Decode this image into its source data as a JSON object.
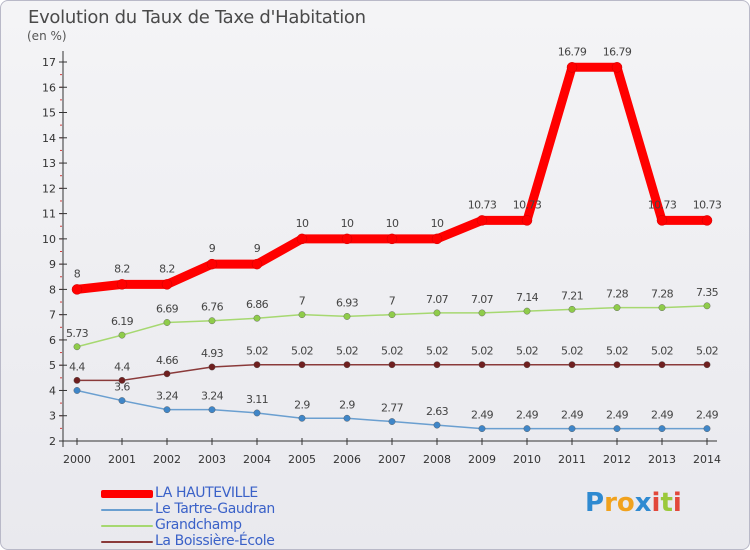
{
  "header": {
    "title": "Evolution du Taux de Taxe d'Habitation",
    "unit": "(en %)"
  },
  "brand": {
    "text": "Proxiti",
    "colors": [
      "#2f8ad1",
      "#f1a21d",
      "#9bc93b",
      "#e2473a"
    ]
  },
  "chart_data": {
    "type": "line",
    "title": "Evolution du Taux de Taxe d'Habitation",
    "ylabel": "(en %)",
    "xlabel": "",
    "x": [
      "2000",
      "2001",
      "2002",
      "2003",
      "2004",
      "2005",
      "2006",
      "2007",
      "2008",
      "2009",
      "2010",
      "2011",
      "2012",
      "2013",
      "2014"
    ],
    "ylim": [
      2,
      17
    ],
    "yticks": [
      2,
      3,
      4,
      5,
      6,
      7,
      8,
      9,
      10,
      11,
      12,
      13,
      14,
      15,
      16,
      17
    ],
    "grid": false,
    "legend": "bottom-left",
    "series": [
      {
        "name": "LA HAUTEVILLE",
        "color": "#ff0000",
        "marker": "#ff0000",
        "values": [
          8,
          8.2,
          8.2,
          9,
          9,
          10,
          10,
          10,
          10,
          10.73,
          10.73,
          16.79,
          16.79,
          10.73,
          10.73
        ],
        "labels": [
          "8",
          "8.2",
          "8.2",
          "9",
          "9",
          "10",
          "10",
          "10",
          "10",
          "10.73",
          "10.73",
          "16.79",
          "16.79",
          "10.73",
          "10.73"
        ]
      },
      {
        "name": "Le Tartre-Gaudran",
        "color": "#6a9fd0",
        "marker": "#3f86c8",
        "values": [
          4.0,
          3.6,
          3.24,
          3.24,
          3.11,
          2.9,
          2.9,
          2.77,
          2.63,
          2.49,
          2.49,
          2.49,
          2.49,
          2.49,
          2.49
        ],
        "labels": [
          "",
          "3.6",
          "3.24",
          "3.24",
          "3.11",
          "2.9",
          "2.9",
          "2.77",
          "2.63",
          "2.49",
          "2.49",
          "2.49",
          "2.49",
          "2.49",
          "2.49"
        ]
      },
      {
        "name": "Grandchamp",
        "color": "#a6d870",
        "marker": "#8fcc4a",
        "values": [
          5.73,
          6.19,
          6.69,
          6.76,
          6.86,
          7,
          6.93,
          7,
          7.07,
          7.07,
          7.14,
          7.21,
          7.28,
          7.28,
          7.35
        ],
        "labels": [
          "5.73",
          "6.19",
          "6.69",
          "6.76",
          "6.86",
          "7",
          "6.93",
          "7",
          "7.07",
          "7.07",
          "7.14",
          "7.21",
          "7.28",
          "7.28",
          "7.35"
        ]
      },
      {
        "name": "La Boissière-École",
        "color": "#8a3a3a",
        "marker": "#6e1f1f",
        "values": [
          4.4,
          4.4,
          4.66,
          4.93,
          5.02,
          5.02,
          5.02,
          5.02,
          5.02,
          5.02,
          5.02,
          5.02,
          5.02,
          5.02,
          5.02
        ],
        "labels": [
          "4.4",
          "4.4",
          "4.66",
          "4.93",
          "5.02",
          "5.02",
          "5.02",
          "5.02",
          "5.02",
          "5.02",
          "5.02",
          "5.02",
          "5.02",
          "5.02",
          "5.02"
        ]
      }
    ]
  }
}
